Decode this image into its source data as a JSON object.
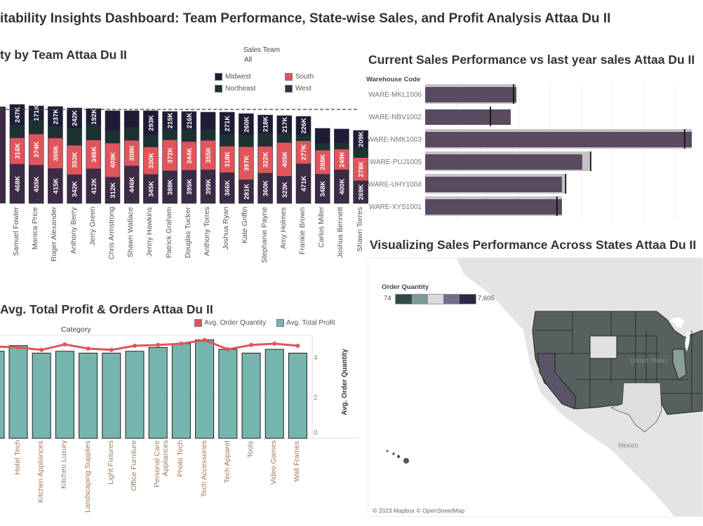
{
  "dashboard_title": "itability Insights Dashboard: Team Performance, State-wise Sales, and Profit Analysis Attaa Du II",
  "team_chart": {
    "title": "ty by Team Attaa Du II",
    "filter_label": "Sales Team",
    "filter_value": "All",
    "legend": [
      {
        "name": "Midwest",
        "color": "#1e1c35"
      },
      {
        "name": "South",
        "color": "#e0555a"
      },
      {
        "name": "Northeast",
        "color": "#1c3230"
      },
      {
        "name": "West",
        "color": "#3c2b45"
      }
    ]
  },
  "profit_chart": {
    "title": "Avg. Total Profit & Orders Attaa Du II",
    "header": "Category",
    "legend": [
      {
        "name": "Avg. Order Quantity",
        "color": "#e0555a"
      },
      {
        "name": "Avg. Total Profit",
        "color": "#76b5ad"
      }
    ],
    "right_axis_title": "Avg. Order Quantity",
    "right_axis_ticks": [
      "4",
      "2",
      "0"
    ]
  },
  "bullet_chart": {
    "title": "Current Sales Performance vs last year sales Attaa Du II",
    "header": "Warehouse Code"
  },
  "map": {
    "title": "Visualizing Sales Performance Across States Attaa Du II",
    "legend_title": "Order Quantity",
    "legend_min": "74",
    "legend_max": "7,605",
    "legend_colors": [
      "#2f4a47",
      "#7a9a96",
      "#dcdcdc",
      "#6f6f8c",
      "#2a2a45"
    ],
    "label_country": "United States",
    "label_mexico": "Mexico",
    "attribution": "© 2023 Mapbox © OpenStreetMap"
  },
  "chart_data": [
    {
      "type": "bar",
      "stacked": true,
      "reference_line": 1122,
      "categories": [
        "Samuel Fowler",
        "Monica Price",
        "Roger Alexander",
        "Anthony Berry",
        "Jerry Green",
        "Chris Armstrong",
        "Shawn Wallace",
        "Jenny Hawkins",
        "Patrick Graham",
        "Douglas Tucker",
        "Anthony Torres",
        "Joshua Ryan",
        "Kate Griffin",
        "Stephanie Payne",
        "Amy Holmes",
        "Frankie Brown",
        "Carlos Miller",
        "Joshua Bennett",
        "Shawn Torres"
      ],
      "series": [
        {
          "name": "West",
          "values": [
            468,
            455,
            415,
            342,
            412,
            312,
            446,
            345,
            388,
            395,
            399,
            366,
            281,
            360,
            323,
            471,
            348,
            400,
            269
          ],
          "labels": [
            "468K",
            "455K",
            "415K",
            "342K",
            "412K",
            "312K",
            "446K",
            "345K",
            "388K",
            "395K",
            "399K",
            "366K",
            "281K",
            "360K",
            "323K",
            "471K",
            "348K",
            "400K",
            "269K"
          ]
        },
        {
          "name": "South",
          "values": [
            316,
            374,
            366,
            353,
            346,
            409,
            308,
            330,
            372,
            344,
            355,
            318,
            397,
            322,
            405,
            277,
            288,
            249,
            278
          ],
          "labels": [
            "316K",
            "374K",
            "366K",
            "353K",
            "346K",
            "409K",
            "308K",
            "330K",
            "372K",
            "344K",
            "355K",
            "318K",
            "397K",
            "322K",
            "405K",
            "277K",
            "288K",
            "249K",
            "278K"
          ]
        },
        {
          "name": "Northeast",
          "values": [
            150,
            164,
            138,
            202,
            181,
            150,
            152,
            138,
            122,
            142,
            125,
            134,
            134,
            155,
            102,
            65,
            80,
            74,
            115
          ],
          "labels": [
            null,
            null,
            null,
            null,
            null,
            null,
            null,
            null,
            null,
            null,
            null,
            null,
            null,
            null,
            null,
            null,
            null,
            null,
            null
          ]
        },
        {
          "name": "Midwest",
          "values": [
            247,
            171,
            237,
            242,
            192,
            235,
            200,
            293,
            215,
            216,
            210,
            271,
            260,
            218,
            217,
            226,
            180,
            165,
            209
          ],
          "labels": [
            "247K",
            "171K",
            "237K",
            "242K",
            "192K",
            null,
            null,
            "293K",
            "215K",
            "216K",
            null,
            "271K",
            "260K",
            "218K",
            "217K",
            "226K",
            null,
            null,
            "209K"
          ]
        }
      ]
    },
    {
      "type": "bar",
      "categories": [
        "Hotel Tech",
        "Kitchen Appliances",
        "Kitchen Luxury",
        "Landscaping Supplies",
        "Light Fixtures",
        "Office Furniture",
        "Personal Care Appliances",
        "Photo Tech",
        "Tech Accessories",
        "Tech Apparel",
        "Tools",
        "Video Games",
        "Wall Frames"
      ],
      "series": [
        {
          "name": "Avg. Total Profit",
          "type": "bar",
          "values": [
            4.9,
            4.5,
            4.6,
            4.5,
            4.5,
            4.6,
            4.8,
            5.0,
            5.2,
            4.7,
            4.5,
            4.7,
            4.5
          ]
        },
        {
          "name": "Avg. Order Quantity",
          "type": "line",
          "values": [
            4.8,
            4.67,
            4.96,
            4.74,
            4.67,
            4.89,
            4.93,
            5.0,
            5.19,
            4.7,
            4.93,
            5.0,
            4.89
          ]
        }
      ],
      "y_right_lim": [
        0,
        5.5
      ]
    },
    {
      "type": "bar",
      "orientation": "horizontal",
      "categories": [
        "WARE-MKL1006",
        "WARE-NBV1002",
        "WARE-NMK1003",
        "WARE-PUJ1005",
        "WARE-UHY1004",
        "WARE-XYS1001"
      ],
      "series": [
        {
          "name": "current",
          "values": [
            2.92,
            2.74,
            8.54,
            5.03,
            4.38,
            4.38
          ]
        },
        {
          "name": "last_year",
          "values": [
            2.92,
            0,
            8.54,
            5.3,
            4.52,
            4.38
          ]
        },
        {
          "name": "target",
          "values": [
            2.83,
            2.09,
            8.31,
            5.3,
            4.5,
            4.22
          ]
        }
      ],
      "xlim": [
        0,
        8.6
      ]
    }
  ]
}
